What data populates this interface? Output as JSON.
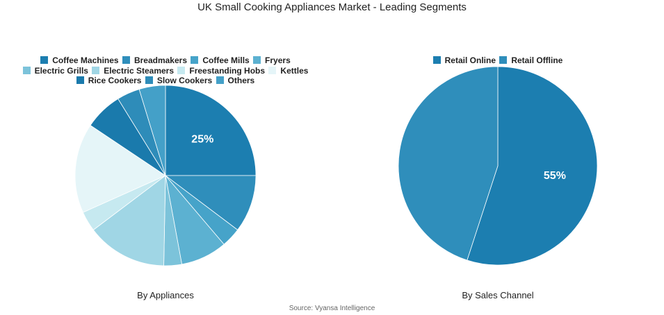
{
  "title": "UK Small Cooking Appliances Market - Leading Segments",
  "source": "Source: Vyansa Intelligence",
  "chart_data": [
    {
      "type": "pie",
      "subtitle": "By Appliances",
      "legend_placement": "top",
      "categories": [
        "Coffee Machines",
        "Breadmakers",
        "Coffee Mills",
        "Fryers",
        "Electric Grills",
        "Electric Steamers",
        "Freestanding Hobs",
        "Kettles",
        "Rice Cookers",
        "Slow Cookers",
        "Others"
      ],
      "values": [
        25,
        10.3,
        3.5,
        8.3,
        3.2,
        14.4,
        3.6,
        16.1,
        6.8,
        4.1,
        4.7
      ],
      "colors": [
        "#1c7eb0",
        "#2f8ebb",
        "#46a3c9",
        "#5cb1d1",
        "#7cc3da",
        "#a0d6e5",
        "#c6e9f0",
        "#e5f5f8",
        "#1a7aac",
        "#2e8cb9",
        "#44a0c8"
      ],
      "data_labels": [
        "25%",
        "",
        "",
        "",
        "",
        "",
        "",
        "",
        "",
        "",
        ""
      ]
    },
    {
      "type": "pie",
      "subtitle": "By Sales Channel",
      "legend_placement": "top",
      "categories": [
        "Retail Online",
        "Retail Offline"
      ],
      "values": [
        55,
        45
      ],
      "colors": [
        "#1c7eb0",
        "#2f8ebb"
      ],
      "data_labels": [
        "55%",
        ""
      ]
    }
  ]
}
